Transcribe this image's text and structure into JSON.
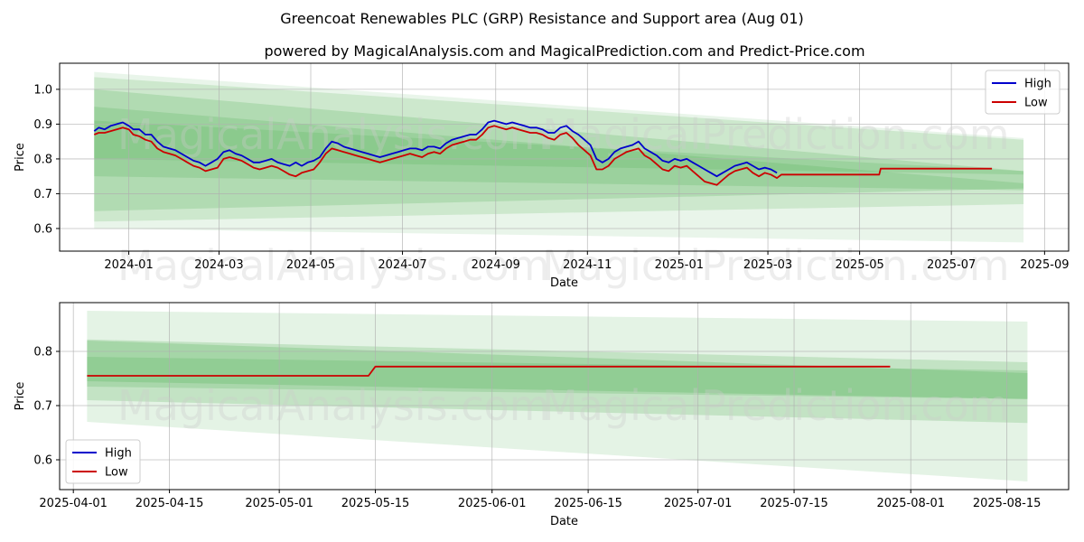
{
  "title": "Greencoat Renewables PLC (GRP) Resistance and Support area (Aug 01)",
  "subtitle": "powered by MagicalAnalysis.com and MagicalPrediction.com and Predict-Price.com",
  "watermarks": [
    "MagicalAnalysis.com",
    "MagicalPrediction.com"
  ],
  "colors": {
    "high": "#0000cc",
    "low": "#cc0000",
    "band": "#4caf50"
  },
  "chart_data": [
    {
      "type": "line",
      "xlabel": "Date",
      "ylabel": "Price",
      "xlim": [
        "2023-11-16",
        "2025-09-17"
      ],
      "ylim": [
        0.535,
        1.075
      ],
      "xticks": [
        "2024-01",
        "2024-03",
        "2024-05",
        "2024-07",
        "2024-09",
        "2024-11",
        "2025-01",
        "2025-03",
        "2025-05",
        "2025-07",
        "2025-09"
      ],
      "yticks": [
        0.6,
        0.7,
        0.8,
        0.9,
        1.0
      ],
      "legend": {
        "placement": "top-right",
        "entries": [
          "High",
          "Low"
        ]
      },
      "grid": true,
      "bands": [
        {
          "x": [
            "2023-12-09",
            "2025-08-18"
          ],
          "upper": [
            1.05,
            0.86
          ],
          "lower": [
            0.6,
            0.56
          ],
          "opacity": 0.12
        },
        {
          "x": [
            "2023-12-09",
            "2025-08-18"
          ],
          "upper": [
            1.035,
            0.855
          ],
          "lower": [
            0.62,
            0.67
          ],
          "opacity": 0.18
        },
        {
          "x": [
            "2023-12-09",
            "2025-08-18"
          ],
          "upper": [
            1.0,
            0.765
          ],
          "lower": [
            0.65,
            0.715
          ],
          "opacity": 0.22
        },
        {
          "x": [
            "2023-12-09",
            "2025-08-18"
          ],
          "upper": [
            0.95,
            0.73
          ],
          "lower": [
            0.75,
            0.71
          ],
          "opacity": 0.22
        },
        {
          "x": [
            "2023-12-09",
            "2025-08-18"
          ],
          "upper": [
            0.91,
            0.765
          ],
          "lower": [
            0.8,
            0.755
          ],
          "opacity": 0.2
        }
      ],
      "series": [
        {
          "name": "High",
          "x": [
            "2023-12-09",
            "2023-12-12",
            "2023-12-16",
            "2023-12-20",
            "2023-12-24",
            "2023-12-28",
            "2024-01-01",
            "2024-01-04",
            "2024-01-08",
            "2024-01-12",
            "2024-01-16",
            "2024-01-20",
            "2024-01-24",
            "2024-01-28",
            "2024-02-01",
            "2024-02-05",
            "2024-02-09",
            "2024-02-13",
            "2024-02-17",
            "2024-02-21",
            "2024-02-25",
            "2024-02-29",
            "2024-03-04",
            "2024-03-08",
            "2024-03-12",
            "2024-03-16",
            "2024-03-20",
            "2024-03-24",
            "2024-03-28",
            "2024-04-01",
            "2024-04-05",
            "2024-04-09",
            "2024-04-13",
            "2024-04-17",
            "2024-04-21",
            "2024-04-25",
            "2024-04-29",
            "2024-05-03",
            "2024-05-07",
            "2024-05-11",
            "2024-05-15",
            "2024-05-19",
            "2024-05-23",
            "2024-05-27",
            "2024-05-31",
            "2024-06-04",
            "2024-06-08",
            "2024-06-12",
            "2024-06-16",
            "2024-06-20",
            "2024-06-24",
            "2024-06-28",
            "2024-07-02",
            "2024-07-06",
            "2024-07-10",
            "2024-07-14",
            "2024-07-18",
            "2024-07-22",
            "2024-07-26",
            "2024-07-30",
            "2024-08-03",
            "2024-08-07",
            "2024-08-11",
            "2024-08-15",
            "2024-08-19",
            "2024-08-23",
            "2024-08-27",
            "2024-08-31",
            "2024-09-04",
            "2024-09-08",
            "2024-09-12",
            "2024-09-16",
            "2024-09-20",
            "2024-09-24",
            "2024-09-28",
            "2024-10-02",
            "2024-10-06",
            "2024-10-10",
            "2024-10-14",
            "2024-10-18",
            "2024-10-22",
            "2024-10-26",
            "2024-10-30",
            "2024-11-03",
            "2024-11-07",
            "2024-11-11",
            "2024-11-15",
            "2024-11-19",
            "2024-11-23",
            "2024-11-27",
            "2024-12-01",
            "2024-12-05",
            "2024-12-09",
            "2024-12-13",
            "2024-12-17",
            "2024-12-21",
            "2024-12-25",
            "2024-12-29",
            "2025-01-02",
            "2025-01-06",
            "2025-01-10",
            "2025-01-14",
            "2025-01-18",
            "2025-01-22",
            "2025-01-26",
            "2025-01-30",
            "2025-02-03",
            "2025-02-07",
            "2025-02-11",
            "2025-02-15",
            "2025-02-19",
            "2025-02-23",
            "2025-02-27",
            "2025-03-03",
            "2025-03-07"
          ],
          "values": [
            0.88,
            0.89,
            0.885,
            0.895,
            0.9,
            0.905,
            0.895,
            0.885,
            0.885,
            0.87,
            0.87,
            0.85,
            0.835,
            0.83,
            0.825,
            0.815,
            0.805,
            0.795,
            0.79,
            0.78,
            0.79,
            0.8,
            0.82,
            0.825,
            0.815,
            0.81,
            0.8,
            0.79,
            0.79,
            0.795,
            0.8,
            0.79,
            0.785,
            0.78,
            0.79,
            0.78,
            0.79,
            0.795,
            0.805,
            0.83,
            0.85,
            0.845,
            0.835,
            0.83,
            0.825,
            0.82,
            0.815,
            0.81,
            0.805,
            0.81,
            0.815,
            0.82,
            0.825,
            0.83,
            0.83,
            0.825,
            0.835,
            0.835,
            0.83,
            0.845,
            0.855,
            0.86,
            0.865,
            0.87,
            0.87,
            0.885,
            0.905,
            0.91,
            0.905,
            0.9,
            0.905,
            0.9,
            0.895,
            0.89,
            0.89,
            0.885,
            0.875,
            0.875,
            0.89,
            0.895,
            0.88,
            0.87,
            0.855,
            0.84,
            0.8,
            0.79,
            0.8,
            0.82,
            0.83,
            0.835,
            0.84,
            0.85,
            0.83,
            0.82,
            0.81,
            0.795,
            0.79,
            0.8,
            0.795,
            0.8,
            0.79,
            0.78,
            0.77,
            0.76,
            0.75,
            0.76,
            0.77,
            0.78,
            0.785,
            0.79,
            0.78,
            0.77,
            0.775,
            0.77,
            0.76
          ],
          "color": "#0000cc"
        },
        {
          "name": "Low",
          "x": [
            "2023-12-09",
            "2023-12-12",
            "2023-12-16",
            "2023-12-20",
            "2023-12-24",
            "2023-12-28",
            "2024-01-01",
            "2024-01-04",
            "2024-01-08",
            "2024-01-12",
            "2024-01-16",
            "2024-01-20",
            "2024-01-24",
            "2024-01-28",
            "2024-02-01",
            "2024-02-05",
            "2024-02-09",
            "2024-02-13",
            "2024-02-17",
            "2024-02-21",
            "2024-02-25",
            "2024-02-29",
            "2024-03-04",
            "2024-03-08",
            "2024-03-12",
            "2024-03-16",
            "2024-03-20",
            "2024-03-24",
            "2024-03-28",
            "2024-04-01",
            "2024-04-05",
            "2024-04-09",
            "2024-04-13",
            "2024-04-17",
            "2024-04-21",
            "2024-04-25",
            "2024-04-29",
            "2024-05-03",
            "2024-05-07",
            "2024-05-11",
            "2024-05-15",
            "2024-05-19",
            "2024-05-23",
            "2024-05-27",
            "2024-05-31",
            "2024-06-04",
            "2024-06-08",
            "2024-06-12",
            "2024-06-16",
            "2024-06-20",
            "2024-06-24",
            "2024-06-28",
            "2024-07-02",
            "2024-07-06",
            "2024-07-10",
            "2024-07-14",
            "2024-07-18",
            "2024-07-22",
            "2024-07-26",
            "2024-07-30",
            "2024-08-03",
            "2024-08-07",
            "2024-08-11",
            "2024-08-15",
            "2024-08-19",
            "2024-08-23",
            "2024-08-27",
            "2024-08-31",
            "2024-09-04",
            "2024-09-08",
            "2024-09-12",
            "2024-09-16",
            "2024-09-20",
            "2024-09-24",
            "2024-09-28",
            "2024-10-02",
            "2024-10-06",
            "2024-10-10",
            "2024-10-14",
            "2024-10-18",
            "2024-10-22",
            "2024-10-26",
            "2024-10-30",
            "2024-11-03",
            "2024-11-07",
            "2024-11-11",
            "2024-11-15",
            "2024-11-19",
            "2024-11-23",
            "2024-11-27",
            "2024-12-01",
            "2024-12-05",
            "2024-12-09",
            "2024-12-13",
            "2024-12-17",
            "2024-12-21",
            "2024-12-25",
            "2024-12-29",
            "2025-01-02",
            "2025-01-06",
            "2025-01-10",
            "2025-01-14",
            "2025-01-18",
            "2025-01-22",
            "2025-01-26",
            "2025-01-30",
            "2025-02-03",
            "2025-02-07",
            "2025-02-11",
            "2025-02-15",
            "2025-02-19",
            "2025-02-23",
            "2025-02-27",
            "2025-03-03",
            "2025-03-07",
            "2025-03-10",
            "2025-05-14",
            "2025-05-15",
            "2025-07-28"
          ],
          "values": [
            0.87,
            0.875,
            0.875,
            0.88,
            0.885,
            0.89,
            0.885,
            0.87,
            0.865,
            0.855,
            0.85,
            0.83,
            0.82,
            0.815,
            0.81,
            0.8,
            0.79,
            0.78,
            0.775,
            0.765,
            0.77,
            0.775,
            0.8,
            0.805,
            0.8,
            0.795,
            0.785,
            0.775,
            0.77,
            0.775,
            0.78,
            0.775,
            0.765,
            0.755,
            0.75,
            0.76,
            0.765,
            0.77,
            0.79,
            0.815,
            0.83,
            0.825,
            0.82,
            0.815,
            0.81,
            0.805,
            0.8,
            0.795,
            0.79,
            0.795,
            0.8,
            0.805,
            0.81,
            0.815,
            0.81,
            0.805,
            0.815,
            0.82,
            0.815,
            0.83,
            0.84,
            0.845,
            0.85,
            0.855,
            0.855,
            0.87,
            0.89,
            0.895,
            0.89,
            0.885,
            0.89,
            0.885,
            0.88,
            0.875,
            0.875,
            0.87,
            0.86,
            0.855,
            0.87,
            0.875,
            0.86,
            0.84,
            0.825,
            0.81,
            0.77,
            0.77,
            0.78,
            0.8,
            0.81,
            0.82,
            0.825,
            0.83,
            0.81,
            0.8,
            0.785,
            0.77,
            0.765,
            0.78,
            0.775,
            0.78,
            0.765,
            0.75,
            0.735,
            0.73,
            0.725,
            0.74,
            0.755,
            0.765,
            0.77,
            0.775,
            0.76,
            0.75,
            0.76,
            0.755,
            0.745,
            0.755,
            0.755,
            0.772,
            0.772
          ],
          "color": "#cc0000"
        }
      ]
    },
    {
      "type": "line",
      "xlabel": "Date",
      "ylabel": "Price",
      "xlim": [
        "2025-03-30",
        "2025-08-24"
      ],
      "ylim": [
        0.545,
        0.89
      ],
      "xticks": [
        "2025-04-01",
        "2025-04-15",
        "2025-05-01",
        "2025-05-15",
        "2025-06-01",
        "2025-06-15",
        "2025-07-01",
        "2025-07-15",
        "2025-08-01",
        "2025-08-15"
      ],
      "yticks": [
        0.6,
        0.7,
        0.8
      ],
      "legend": {
        "placement": "bottom-left",
        "entries": [
          "High",
          "Low"
        ]
      },
      "grid": true,
      "bands": [
        {
          "x": [
            "2025-04-03",
            "2025-08-18"
          ],
          "upper": [
            0.875,
            0.855
          ],
          "lower": [
            0.67,
            0.56
          ],
          "opacity": 0.15
        },
        {
          "x": [
            "2025-04-03",
            "2025-08-18"
          ],
          "upper": [
            0.822,
            0.78
          ],
          "lower": [
            0.71,
            0.668
          ],
          "opacity": 0.22
        },
        {
          "x": [
            "2025-04-03",
            "2025-08-18"
          ],
          "upper": [
            0.82,
            0.76
          ],
          "lower": [
            0.745,
            0.712
          ],
          "opacity": 0.25
        },
        {
          "x": [
            "2025-04-03",
            "2025-08-18"
          ],
          "upper": [
            0.79,
            0.765
          ],
          "lower": [
            0.735,
            0.712
          ],
          "opacity": 0.22
        }
      ],
      "series": [
        {
          "name": "High",
          "x": [],
          "values": [],
          "color": "#0000cc"
        },
        {
          "name": "Low",
          "x": [
            "2025-04-03",
            "2025-05-14",
            "2025-05-15",
            "2025-07-29"
          ],
          "values": [
            0.755,
            0.755,
            0.772,
            0.772
          ],
          "color": "#cc0000"
        }
      ]
    }
  ]
}
